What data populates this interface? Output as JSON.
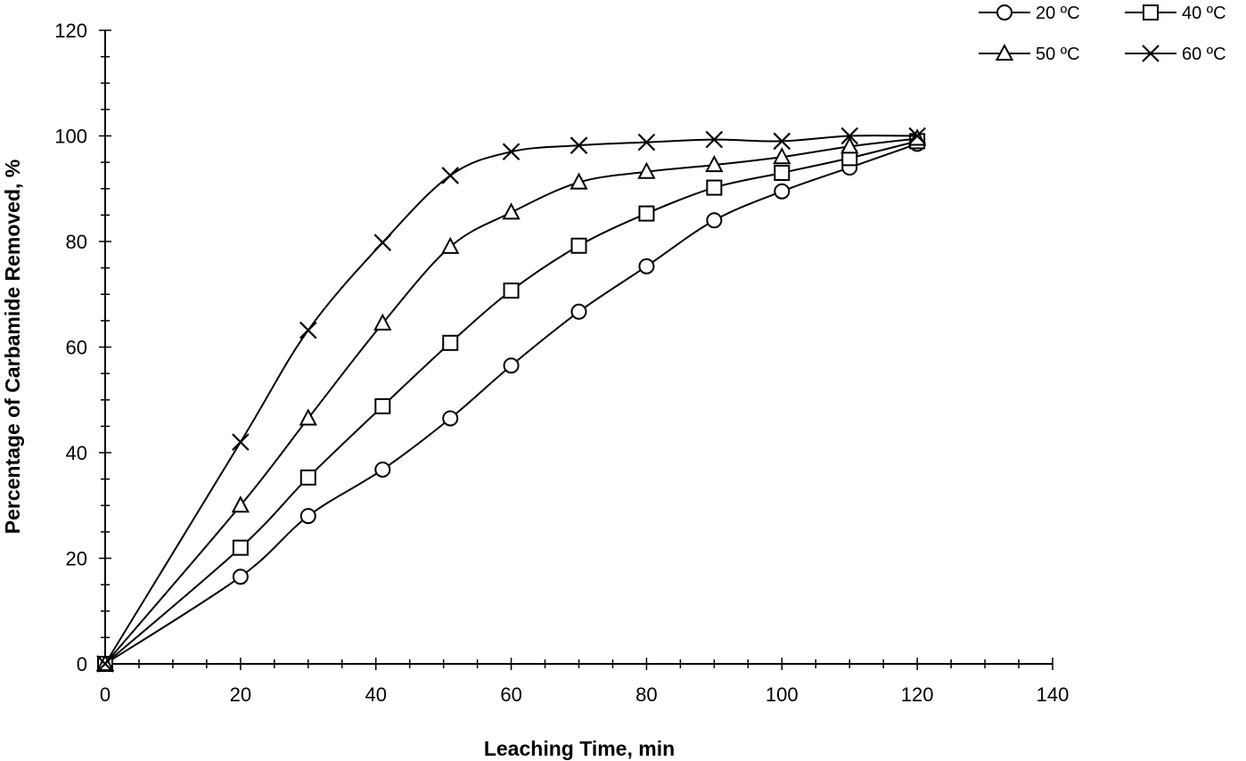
{
  "chart_data": {
    "type": "line",
    "title": "",
    "xlabel": "Leaching Time, min",
    "ylabel": "Percentage of Carbamide Removed, %",
    "xlim": [
      0,
      140
    ],
    "ylim": [
      0,
      120
    ],
    "xticks": [
      "0",
      "20",
      "40",
      "60",
      "80",
      "100",
      "120",
      "140"
    ],
    "yticks": [
      "0",
      "20",
      "40",
      "60",
      "80",
      "100",
      "120"
    ],
    "grid": false,
    "legend_position": "top-right",
    "series": [
      {
        "name": "20 ºC",
        "marker": "circle",
        "x": [
          0,
          20,
          30,
          41,
          51,
          60,
          70,
          80,
          90,
          100,
          110,
          120
        ],
        "y": [
          0,
          16.5,
          28,
          36.8,
          46.5,
          56.5,
          66.7,
          75.3,
          84,
          89.5,
          94,
          98.5
        ]
      },
      {
        "name": "40 ºC",
        "marker": "square",
        "x": [
          0,
          20,
          30,
          41,
          51,
          60,
          70,
          80,
          90,
          100,
          110,
          120
        ],
        "y": [
          0,
          22,
          35.3,
          48.8,
          60.8,
          70.7,
          79.2,
          85.3,
          90.2,
          93,
          95.8,
          99
        ]
      },
      {
        "name": "50 ºC",
        "marker": "triangle",
        "x": [
          0,
          20,
          30,
          41,
          51,
          60,
          70,
          80,
          90,
          100,
          110,
          120
        ],
        "y": [
          0,
          30,
          46.5,
          64.5,
          79,
          85.5,
          91.2,
          93.2,
          94.5,
          96,
          98,
          99.5
        ]
      },
      {
        "name": "60 ºC",
        "marker": "x",
        "x": [
          0,
          20,
          30,
          41,
          51,
          60,
          70,
          80,
          90,
          100,
          110,
          120
        ],
        "y": [
          0,
          42,
          63.2,
          79.8,
          92.5,
          97,
          98.2,
          98.8,
          99.3,
          99,
          100,
          100
        ]
      }
    ]
  }
}
